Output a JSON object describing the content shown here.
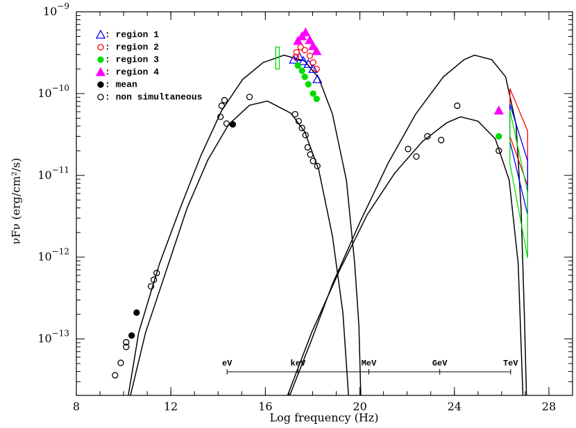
{
  "chart_data": {
    "type": "sed",
    "xlabel": "Log frequency (Hz)",
    "ylabel": "νFν (erg/cm²/s)",
    "log_y": true,
    "xlim": [
      8,
      29
    ],
    "ylim": [
      2.04e-14,
      1e-09
    ],
    "xticks": [
      8,
      12,
      16,
      20,
      24,
      28
    ],
    "yticks": [
      {
        "value": 1e-09,
        "label": "10",
        "exponent": "−9"
      },
      {
        "value": 1e-10,
        "label": "10",
        "exponent": "−10"
      },
      {
        "value": 1e-11,
        "label": "10",
        "exponent": "−11"
      },
      {
        "value": 1e-12,
        "label": "10",
        "exponent": "−12"
      },
      {
        "value": 1e-13,
        "label": "10",
        "exponent": "−13"
      }
    ],
    "energy_ticks": [
      {
        "value": 14.38,
        "label": "eV"
      },
      {
        "value": 17.38,
        "label": "keV"
      },
      {
        "value": 20.38,
        "label": "MeV"
      },
      {
        "value": 23.38,
        "label": "GeV"
      },
      {
        "value": 26.38,
        "label": "TeV"
      }
    ],
    "series": [
      {
        "name": ": region 1",
        "color": "#0000ff",
        "marker": "open-triangle",
        "x": [
          17.2,
          17.44,
          17.61,
          17.82,
          18.02,
          18.2
        ],
        "values": [
          2.6e-10,
          2.8e-10,
          2.5e-10,
          2.3e-10,
          2e-10,
          1.5e-10
        ]
      },
      {
        "name": ": region 2",
        "color": "#ff0000",
        "marker": "open-circle",
        "x": [
          17.29,
          17.32,
          17.49,
          17.67,
          17.88,
          18.02,
          18.17
        ],
        "values": [
          2.8e-10,
          3.2e-10,
          3.7e-10,
          3.4e-10,
          2.9e-10,
          2.4e-10,
          2e-10
        ]
      },
      {
        "name": ": region 3",
        "color": "#00dd00",
        "marker": "filled-circle",
        "x": [
          17.38,
          17.55,
          17.67,
          17.82,
          18.02,
          18.17,
          25.88
        ],
        "values": [
          2.2e-10,
          1.9e-10,
          1.6e-10,
          1.3e-10,
          1e-10,
          8.6e-11,
          3e-11
        ]
      },
      {
        "name": ": region 4",
        "color": "#ff00ff",
        "marker": "filled-triangle",
        "x": [
          17.38,
          17.55,
          17.7,
          17.88,
          18.02,
          18.17,
          25.88
        ],
        "values": [
          4.4e-10,
          5e-10,
          5.6e-10,
          4.5e-10,
          3.8e-10,
          3.3e-10,
          6.2e-11
        ]
      },
      {
        "name": ": mean",
        "color": "#000000",
        "marker": "filled-circle",
        "x": [
          10.34,
          10.55,
          14.62
        ],
        "values": [
          1.1e-13,
          2.1e-13,
          4.2e-11
        ]
      },
      {
        "name": ": non simultaneous",
        "color": "#000000",
        "marker": "open-circle",
        "x": [
          9.64,
          9.88,
          10.11,
          10.11,
          11.16,
          11.28,
          11.4,
          14.1,
          14.15,
          14.27,
          14.36,
          15.33,
          17.26,
          17.41,
          17.55,
          17.7,
          17.79,
          17.9,
          18.02,
          18.2,
          22.04,
          22.39,
          22.86,
          23.44,
          24.12,
          25.88
        ],
        "values": [
          3.6e-14,
          5.1e-14,
          8e-14,
          9.1e-14,
          4.4e-13,
          5.3e-13,
          6.4e-13,
          5.2e-11,
          7.1e-11,
          8.3e-11,
          4.3e-11,
          9.1e-11,
          5.6e-11,
          4.6e-11,
          3.8e-11,
          3.1e-11,
          2.2e-11,
          1.8e-11,
          1.5e-11,
          1.3e-11,
          2.1e-11,
          1.7e-11,
          3e-11,
          2.7e-11,
          7.1e-11,
          2e-11
        ]
      }
    ],
    "curves": [
      {
        "color": "#000000",
        "x": [
          10.2,
          10.64,
          11.52,
          12.4,
          13.27,
          14.15,
          15.03,
          15.91,
          16.79,
          17.67,
          18.26,
          18.84,
          19.43,
          19.78,
          19.96,
          20.04
        ],
        "values": [
          2.04e-14,
          1.2e-13,
          8.3e-13,
          4e-12,
          1.74e-11,
          6.2e-11,
          1.48e-10,
          2.4e-10,
          2.95e-10,
          2.5e-10,
          1.55e-10,
          5.6e-11,
          8.7e-12,
          8.3e-13,
          1.45e-13,
          2.04e-14
        ]
      },
      {
        "color": "#000000",
        "x": [
          10.29,
          10.93,
          11.81,
          12.69,
          13.57,
          14.45,
          15.33,
          16.09,
          17.08,
          17.67,
          18.26,
          18.84,
          19.28,
          19.52
        ],
        "values": [
          2.04e-14,
          1.2e-13,
          6.9e-13,
          4e-12,
          1.55e-11,
          4.2e-11,
          7.2e-11,
          8.1e-11,
          5.75e-11,
          3.4e-11,
          1.17e-11,
          1.8e-12,
          2.1e-13,
          2.04e-14
        ]
      },
      {
        "color": "#000000",
        "x": [
          17.03,
          17.96,
          18.84,
          20.01,
          21.19,
          22.36,
          23.53,
          24.41,
          24.85,
          25.58,
          26.17,
          26.61,
          26.82,
          26.96,
          27.05
        ],
        "values": [
          2.04e-14,
          9.8e-14,
          4.7e-13,
          2.7e-12,
          1.4e-11,
          5.6e-11,
          1.6e-10,
          2.6e-10,
          2.95e-10,
          2.6e-10,
          1.6e-10,
          4.2e-11,
          4e-12,
          2.1e-13,
          2.04e-14
        ]
      },
      {
        "color": "#000000",
        "x": [
          16.94,
          17.96,
          19.14,
          20.31,
          21.48,
          22.65,
          23.68,
          24.26,
          25.0,
          25.73,
          26.32,
          26.7,
          26.9
        ],
        "values": [
          2.04e-14,
          1.2e-13,
          6.9e-13,
          3.3e-12,
          1.07e-11,
          2.6e-11,
          4.4e-11,
          5.2e-11,
          4.6e-11,
          2.8e-11,
          8.7e-12,
          8.3e-13,
          2.04e-14
        ]
      }
    ],
    "bowties": [
      {
        "color": "#ff0000",
        "x": [
          26.35,
          27.1
        ],
        "upper": [
          1.15e-10,
          3.5e-11
        ],
        "lower": [
          3e-11,
          7.5e-12
        ]
      },
      {
        "color": "#0000ff",
        "x": [
          26.35,
          27.1
        ],
        "upper": [
          7.4e-11,
          1.5e-11
        ],
        "lower": [
          2.6e-11,
          3.3e-12
        ]
      },
      {
        "color": "#00dd00",
        "x": [
          26.35,
          27.1
        ],
        "upper": [
          6.2e-11,
          6.2e-12
        ],
        "lower": [
          1.4e-11,
          9.8e-13
        ]
      }
    ],
    "box": {
      "color": "#00dd00",
      "x": [
        16.44,
        16.59
      ],
      "values": [
        2e-10,
        3.7e-10
      ]
    }
  }
}
